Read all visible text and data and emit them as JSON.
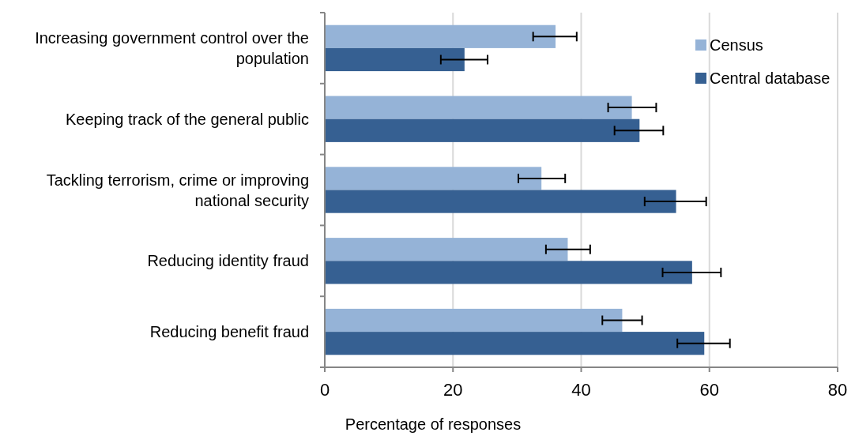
{
  "chart_data": {
    "type": "bar",
    "orientation": "horizontal",
    "categories": [
      "Increasing government control over the population",
      "Keeping track of the general public",
      "Tackling terrorism, crime or improving national security",
      "Reducing identity fraud",
      "Reducing benefit fraud"
    ],
    "series": [
      {
        "name": "Census",
        "color": "#95b3d7",
        "values": [
          36.0,
          47.9,
          33.8,
          37.9,
          46.4
        ],
        "errors": [
          [
            32.5,
            39.3
          ],
          [
            44.2,
            51.7
          ],
          [
            30.2,
            37.5
          ],
          [
            34.5,
            41.4
          ],
          [
            43.3,
            49.5
          ]
        ]
      },
      {
        "name": "Central database",
        "color": "#366092",
        "values": [
          21.8,
          49.1,
          54.8,
          57.3,
          59.2
        ],
        "errors": [
          [
            18.1,
            25.4
          ],
          [
            45.2,
            52.8
          ],
          [
            49.9,
            59.5
          ],
          [
            52.7,
            61.8
          ],
          [
            55.0,
            63.2
          ]
        ]
      }
    ],
    "xlabel": "Percentage of responses",
    "xlim": [
      0,
      80
    ],
    "xticks": [
      0,
      20,
      40,
      60,
      80
    ],
    "grid": "x",
    "legend": "top right"
  }
}
